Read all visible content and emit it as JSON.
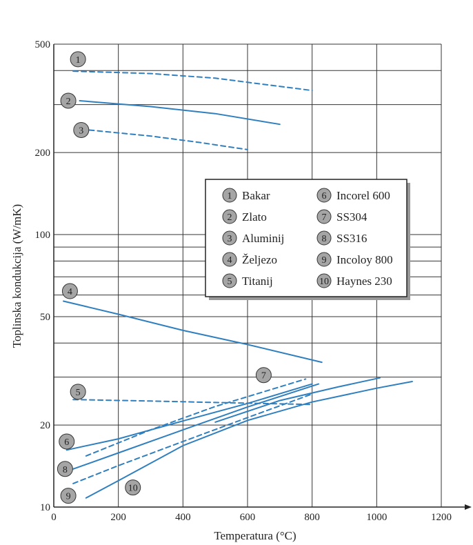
{
  "chart_data": {
    "type": "line",
    "title": "",
    "xlabel": "Temperatura (°C)",
    "ylabel": "Toplinska kondukcija  (W/mK)",
    "xlim": [
      0,
      1200
    ],
    "ylim": [
      10,
      500
    ],
    "yscale": "log",
    "x_ticks": [
      0,
      200,
      400,
      600,
      800,
      1000,
      1200
    ],
    "x_tick_labels": [
      "0",
      "200",
      "400",
      "600",
      "800",
      "1000",
      "1200"
    ],
    "y_ticks": [
      10,
      20,
      50,
      100,
      200,
      500
    ],
    "y_tick_labels": [
      "10",
      "20",
      "50",
      "100",
      "200",
      "500"
    ],
    "y_gridlines": [
      10,
      20,
      30,
      40,
      50,
      60,
      70,
      80,
      90,
      100,
      200,
      300,
      400,
      500
    ],
    "grid": true,
    "legend_position": "center-right",
    "legend": [
      {
        "marker": "1",
        "label": "Bakar"
      },
      {
        "marker": "2",
        "label": "Zlato"
      },
      {
        "marker": "3",
        "label": "Aluminij"
      },
      {
        "marker": "4",
        "label": "Željezo"
      },
      {
        "marker": "5",
        "label": "Titanij"
      },
      {
        "marker": "6",
        "label": "Incorel 600"
      },
      {
        "marker": "7",
        "label": "SS304"
      },
      {
        "marker": "8",
        "label": "SS316"
      },
      {
        "marker": "9",
        "label": "Incoloy 800"
      },
      {
        "marker": "10",
        "label": "Haynes 230"
      }
    ],
    "series": [
      {
        "name": "1",
        "style": "dashed",
        "marker_at": [
          75,
          440
        ],
        "x": [
          60,
          300,
          500,
          800
        ],
        "y": [
          398,
          390,
          375,
          338
        ]
      },
      {
        "name": "2",
        "style": "solid",
        "marker_at": [
          45,
          310
        ],
        "x": [
          80,
          300,
          500,
          700
        ],
        "y": [
          310,
          295,
          278,
          254
        ]
      },
      {
        "name": "3",
        "style": "dashed",
        "marker_at": [
          85,
          242
        ],
        "x": [
          110,
          300,
          450,
          600
        ],
        "y": [
          242,
          230,
          218,
          205
        ]
      },
      {
        "name": "4",
        "style": "solid",
        "marker_at": [
          50,
          62
        ],
        "x": [
          30,
          200,
          400,
          600,
          830
        ],
        "y": [
          57,
          51,
          44.5,
          39.5,
          34
        ]
      },
      {
        "name": "5",
        "style": "dashed",
        "marker_at": [
          75,
          26.5
        ],
        "x": [
          60,
          300,
          500,
          800
        ],
        "y": [
          24.8,
          24.5,
          24.2,
          23.8
        ]
      },
      {
        "name": "6",
        "style": "solid",
        "marker_at": [
          40,
          17.4
        ],
        "x": [
          40,
          200,
          400,
          600,
          800
        ],
        "y": [
          16.2,
          17.8,
          20.7,
          24,
          28.3
        ]
      },
      {
        "name": "7",
        "style": "dashed",
        "marker_at": [
          650,
          30.5
        ],
        "x": [
          100,
          300,
          500,
          780
        ],
        "y": [
          15.4,
          19.2,
          23.4,
          29.5
        ]
      },
      {
        "name": "8",
        "style": "solid",
        "marker_at": [
          35,
          13.8
        ],
        "x": [
          60,
          200,
          400,
          600,
          820
        ],
        "y": [
          13.8,
          15.8,
          19.2,
          23.3,
          28.3
        ]
      },
      {
        "name": "9",
        "style": "dashed",
        "marker_at": [
          45,
          11
        ],
        "x": [
          60,
          200,
          400,
          600,
          800
        ],
        "y": [
          12.2,
          14.2,
          17.4,
          21.3,
          26
        ]
      },
      {
        "name": "10",
        "style": "solid",
        "marker_at": [
          245,
          11.8
        ],
        "x": [
          100,
          200,
          400,
          600,
          800,
          1000,
          1110
        ],
        "y": [
          10.8,
          12.5,
          16.8,
          20.8,
          24.3,
          27.3,
          28.9
        ]
      },
      {
        "name": "",
        "style": "solid",
        "marker_at": null,
        "x": [
          500,
          700,
          880,
          1010
        ],
        "y": [
          20.5,
          24.6,
          27.6,
          29.8
        ]
      }
    ]
  },
  "colors": {
    "line": "#2f7fbf",
    "grid": "#333333",
    "marker_fill": "#a5a5a5"
  }
}
